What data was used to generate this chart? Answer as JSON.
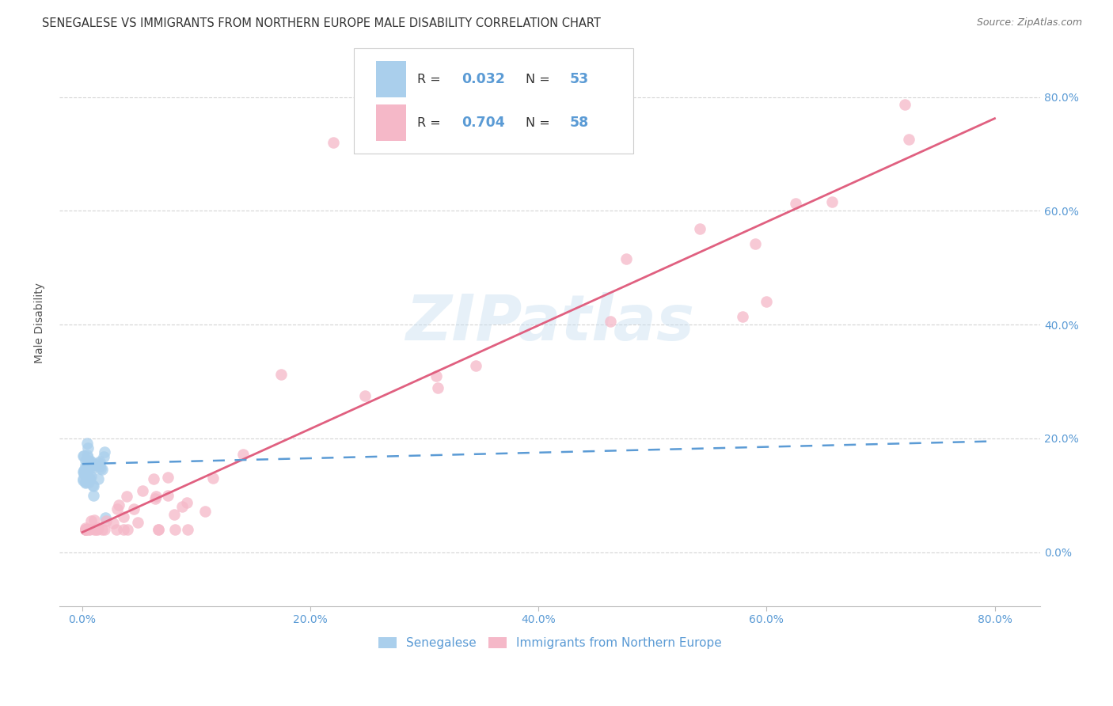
{
  "title": "SENEGALESE VS IMMIGRANTS FROM NORTHERN EUROPE MALE DISABILITY CORRELATION CHART",
  "source": "Source: ZipAtlas.com",
  "ylabel": "Male Disability",
  "x_tick_labels": [
    "0.0%",
    "20.0%",
    "40.0%",
    "60.0%",
    "80.0%"
  ],
  "y_tick_labels": [
    "0.0%",
    "20.0%",
    "40.0%",
    "60.0%",
    "80.0%"
  ],
  "legend_label1": "Senegalese",
  "legend_label2": "Immigrants from Northern Europe",
  "R1": "0.032",
  "N1": "53",
  "R2": "0.704",
  "N2": "58",
  "color_blue": "#aacfec",
  "color_pink": "#f5b8c8",
  "color_blue_dark": "#5b9bd5",
  "color_pink_dark": "#e06080",
  "watermark": "ZIPatlas",
  "background_color": "#ffffff",
  "grid_color": "#d0d0d0"
}
